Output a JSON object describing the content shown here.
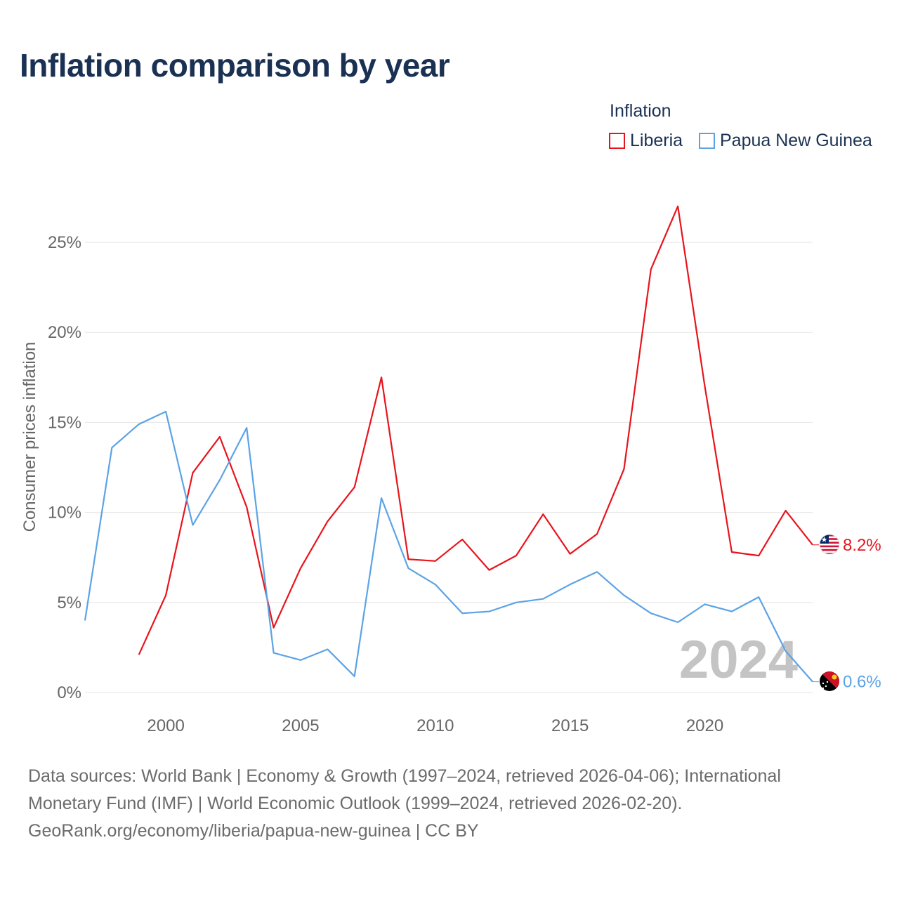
{
  "title": "Inflation comparison by year",
  "legend": {
    "title": "Inflation",
    "items": [
      {
        "label": "Liberia",
        "color": "#e8141c"
      },
      {
        "label": "Papua New Guinea",
        "color": "#5ba3e6"
      }
    ]
  },
  "chart_data": {
    "type": "line",
    "title": "Inflation comparison by year",
    "xlabel": "",
    "ylabel": "Consumer prices inflation",
    "xlim": [
      1997,
      2024
    ],
    "ylim": [
      0,
      25
    ],
    "y_ticks": [
      0,
      5,
      10,
      15,
      20,
      25
    ],
    "y_tick_labels": [
      "0%",
      "5%",
      "10%",
      "15%",
      "20%",
      "25%"
    ],
    "x_ticks": [
      2000,
      2005,
      2010,
      2015,
      2020
    ],
    "x_tick_labels": [
      "2000",
      "2005",
      "2010",
      "2015",
      "2020"
    ],
    "grid": true,
    "year_watermark": "2024",
    "series": [
      {
        "name": "Liberia",
        "color": "#e8141c",
        "end_label": "8.2%",
        "flag": "liberia-flag-icon",
        "x": [
          1999,
          2000,
          2001,
          2002,
          2003,
          2004,
          2005,
          2006,
          2007,
          2008,
          2009,
          2010,
          2011,
          2012,
          2013,
          2014,
          2015,
          2016,
          2017,
          2018,
          2019,
          2020,
          2021,
          2022,
          2023,
          2024
        ],
        "values": [
          2.1,
          5.4,
          12.2,
          14.2,
          10.3,
          3.6,
          6.9,
          9.5,
          11.4,
          17.5,
          7.4,
          7.3,
          8.5,
          6.8,
          7.6,
          9.9,
          7.7,
          8.8,
          12.4,
          23.5,
          27.0,
          17.0,
          7.8,
          7.6,
          10.1,
          8.2
        ]
      },
      {
        "name": "Papua New Guinea",
        "color": "#5ba3e6",
        "end_label": "0.6%",
        "flag": "papua-new-guinea-flag-icon",
        "x": [
          1997,
          1998,
          1999,
          2000,
          2001,
          2002,
          2003,
          2004,
          2005,
          2006,
          2007,
          2008,
          2009,
          2010,
          2011,
          2012,
          2013,
          2014,
          2015,
          2016,
          2017,
          2018,
          2019,
          2020,
          2021,
          2022,
          2023,
          2024
        ],
        "values": [
          4.0,
          13.6,
          14.9,
          15.6,
          9.3,
          11.8,
          14.7,
          2.2,
          1.8,
          2.4,
          0.9,
          10.8,
          6.9,
          6.0,
          4.4,
          4.5,
          5.0,
          5.2,
          6.0,
          6.7,
          5.4,
          4.4,
          3.9,
          4.9,
          4.5,
          5.3,
          2.3,
          0.6
        ]
      }
    ]
  },
  "source": {
    "line1": "Data sources: World Bank | Economy & Growth (1997–2024, retrieved 2026-04-06); International",
    "line2": "Monetary Fund (IMF) | World Economic Outlook (1999–2024, retrieved 2026-02-20).",
    "line3": "GeoRank.org/economy/liberia/papua-new-guinea | CC BY"
  }
}
